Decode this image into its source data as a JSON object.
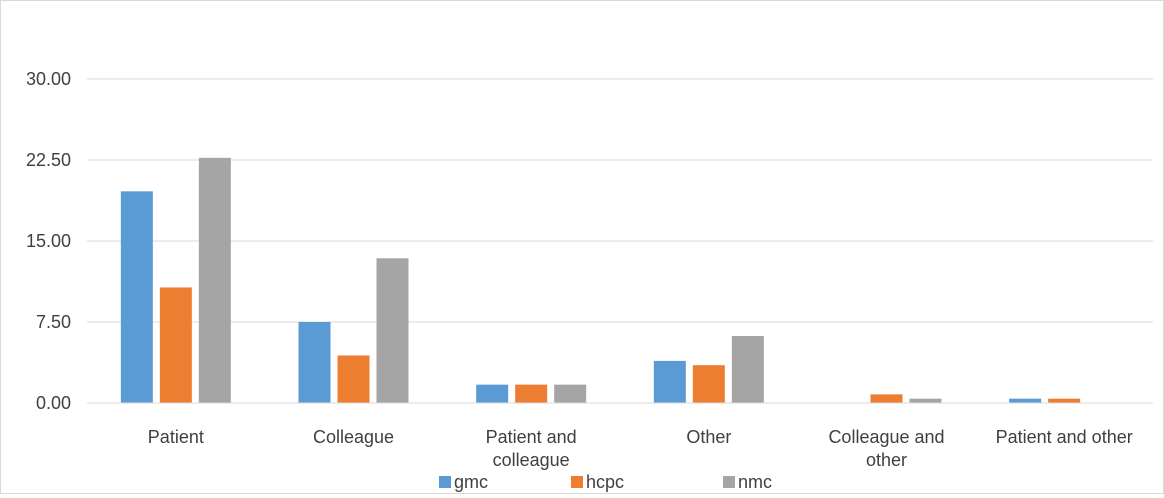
{
  "chart_data": {
    "type": "bar",
    "categories": [
      [
        "Patient"
      ],
      [
        "Colleague"
      ],
      [
        "Patient and",
        "colleague"
      ],
      [
        "Other"
      ],
      [
        "Colleague and",
        "other"
      ],
      [
        "Patient and other"
      ]
    ],
    "series": [
      {
        "name": "gmc",
        "color": "#5b9bd5",
        "values": [
          19.6,
          7.5,
          1.7,
          3.9,
          0.0,
          0.4
        ]
      },
      {
        "name": "hcpc",
        "color": "#ed7d31",
        "values": [
          10.7,
          4.4,
          1.7,
          3.5,
          0.8,
          0.4
        ]
      },
      {
        "name": "nmc",
        "color": "#a5a5a5",
        "values": [
          22.7,
          13.4,
          1.7,
          6.2,
          0.4,
          0.0
        ]
      }
    ],
    "y_ticks": [
      "0.00",
      "7.50",
      "15.00",
      "22.50",
      "30.00"
    ],
    "ylim": [
      0,
      30
    ],
    "grid": true,
    "legend_position": "bottom",
    "title": "",
    "xlabel": "",
    "ylabel": ""
  }
}
